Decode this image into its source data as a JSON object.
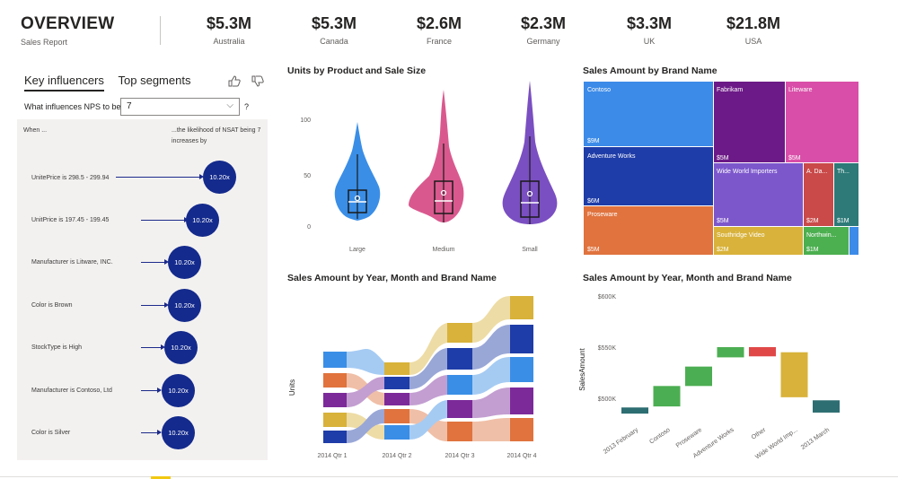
{
  "header": {
    "title": "OVERVIEW",
    "subtitle": "Sales Report",
    "kpis": [
      {
        "value": "$5.3M",
        "label": "Australia"
      },
      {
        "value": "$5.3M",
        "label": "Canada"
      },
      {
        "value": "$2.6M",
        "label": "France"
      },
      {
        "value": "$2.3M",
        "label": "Germany"
      },
      {
        "value": "$3.3M",
        "label": "UK"
      },
      {
        "value": "$21.8M",
        "label": "USA"
      }
    ]
  },
  "key_influencers": {
    "tabs": [
      "Key influencers",
      "Top segments"
    ],
    "question": "What influences NPS to be",
    "selected_value": "7",
    "help": "?",
    "when_header": "When ...",
    "likelihood_header": "...the likelihood of NSAT being 7 increases by",
    "rows": [
      {
        "label": "UnitePrice is 298.5 - 299.94",
        "value": "10.20x"
      },
      {
        "label": "UnitPrice is 197.45 - 199.45",
        "value": "10.20x"
      },
      {
        "label": "Manufacturer is Litware, INC.",
        "value": "10.20x"
      },
      {
        "label": "Color is Brown",
        "value": "10.20x"
      },
      {
        "label": "StockType is High",
        "value": "10.20x"
      },
      {
        "label": "Manufacturer is Contoso, Ltd",
        "value": "10.20x"
      },
      {
        "label": "Color is Silver",
        "value": "10.20x"
      }
    ]
  },
  "violin": {
    "title": "Units by Product and Sale Size",
    "y_ticks": [
      "100",
      "50",
      "0"
    ],
    "categories": [
      "Large",
      "Medium",
      "Small"
    ],
    "colors": [
      "#3a8ee6",
      "#d9598e",
      "#7a4fc1"
    ]
  },
  "treemap": {
    "title": "Sales Amount by Brand Name",
    "tiles": [
      {
        "name": "Contoso",
        "value": "$9M",
        "color": "#3c8be8"
      },
      {
        "name": "Adventure Works",
        "value": "$6M",
        "color": "#1f3da8"
      },
      {
        "name": "Proseware",
        "value": "$5M",
        "color": "#e0733e"
      },
      {
        "name": "Fabrikam",
        "value": "$5M",
        "color": "#6c1a87"
      },
      {
        "name": "Liteware",
        "value": "$5M",
        "color": "#d94ea8"
      },
      {
        "name": "Wide World Importers",
        "value": "$5M",
        "color": "#7c57cc"
      },
      {
        "name": "A. Da...",
        "value": "$2M",
        "color": "#c94a49"
      },
      {
        "name": "Th...",
        "value": "$1M",
        "color": "#2d7a78"
      },
      {
        "name": "Southridge Video",
        "value": "$2M",
        "color": "#d8b23a"
      },
      {
        "name": "Northwin...",
        "value": "$1M",
        "color": "#4caf50"
      },
      {
        "name": "",
        "value": "",
        "color": "#3c8be8"
      }
    ]
  },
  "ribbon": {
    "title": "Sales Amount by Year, Month and Brand Name",
    "ylabel": "Units",
    "categories": [
      "2014 Qtr 1",
      "2014 Qtr 2",
      "2014 Qtr 3",
      "2014 Qtr 4"
    ]
  },
  "waterfall": {
    "title": "Sales Amount by Year, Month and Brand Name",
    "ylabel": "SalesAmount",
    "y_ticks": [
      "$600K",
      "$550K",
      "$500K"
    ]
  },
  "chart_data": [
    {
      "type": "bar",
      "title": "Sales Amount by Year, Month and Brand Name",
      "ylabel": "SalesAmount",
      "ylim": [
        480,
        600
      ],
      "categories": [
        "2013 February",
        "Contoso",
        "Proseware",
        "Adventure Works",
        "Other",
        "Wide World Imp...",
        "2013 March"
      ],
      "series": [
        {
          "values": [
            [
              485,
              491
            ],
            [
              492,
              512
            ],
            [
              512,
              531
            ],
            [
              540,
              550
            ],
            [
              541,
              550
            ],
            [
              501,
              545
            ],
            [
              486,
              498
            ]
          ]
        }
      ],
      "colors": [
        "#2d6e72",
        "#4cae52",
        "#4cae52",
        "#4cae52",
        "#e04848",
        "#d8b23a",
        "#2d6e72"
      ]
    }
  ]
}
